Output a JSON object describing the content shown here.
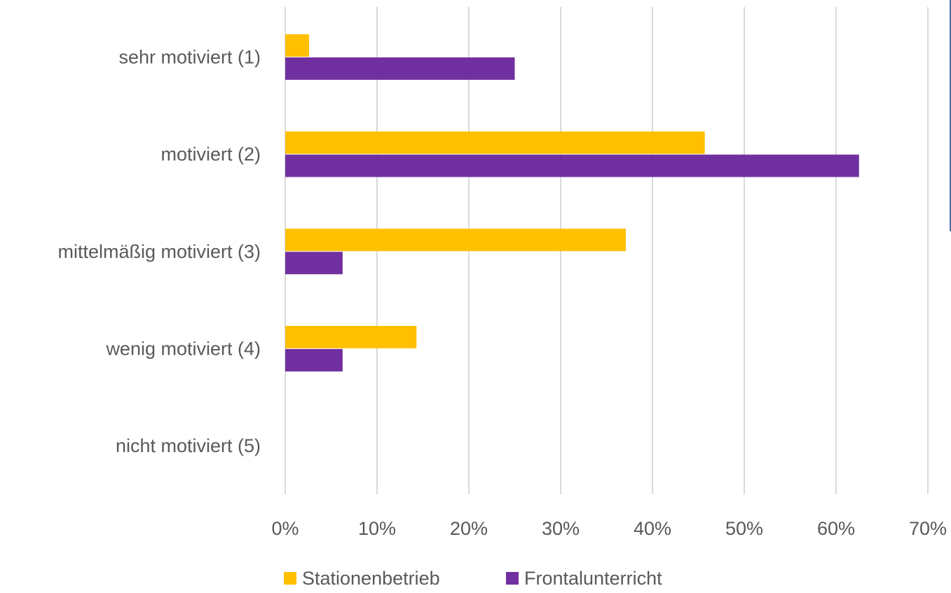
{
  "chart_data": {
    "type": "bar",
    "orientation": "horizontal",
    "categories": [
      "sehr motiviert (1)",
      "motiviert (2)",
      "mittelmäßig motiviert (3)",
      "wenig motiviert (4)",
      "nicht motiviert (5)"
    ],
    "series": [
      {
        "name": "Stationenbetrieb",
        "color": "#FFC000",
        "values": [
          2.6,
          45.7,
          37.1,
          14.3,
          0
        ]
      },
      {
        "name": "Frontalunterricht",
        "color": "#7030A0",
        "values": [
          25.0,
          62.5,
          6.25,
          6.25,
          0
        ]
      }
    ],
    "xlim": [
      0,
      70
    ],
    "ticks": [
      0,
      10,
      20,
      30,
      40,
      50,
      60,
      70
    ],
    "tick_labels": [
      "0%",
      "10%",
      "20%",
      "30%",
      "40%",
      "50%",
      "60%",
      "70%"
    ],
    "title": "",
    "xlabel": "",
    "ylabel": "",
    "grid": "vertical",
    "legend": "bottom"
  }
}
